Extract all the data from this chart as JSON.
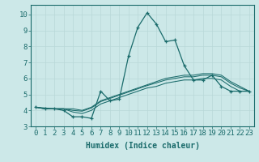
{
  "xlabel": "Humidex (Indice chaleur)",
  "bg_color": "#cce8e8",
  "grid_color": "#b8d8d8",
  "line_color": "#1a6b6b",
  "xlim": [
    -0.5,
    23.5
  ],
  "ylim": [
    3,
    10.6
  ],
  "xticks": [
    0,
    1,
    2,
    3,
    4,
    5,
    6,
    7,
    8,
    9,
    10,
    11,
    12,
    13,
    14,
    15,
    16,
    17,
    18,
    19,
    20,
    21,
    22,
    23
  ],
  "yticks": [
    3,
    4,
    5,
    6,
    7,
    8,
    9,
    10
  ],
  "series": [
    [
      4.2,
      4.1,
      4.1,
      4.0,
      3.6,
      3.6,
      3.5,
      5.2,
      4.6,
      4.7,
      7.4,
      9.2,
      10.1,
      9.4,
      8.3,
      8.4,
      6.8,
      5.9,
      5.9,
      6.2,
      5.5,
      5.2,
      5.2,
      5.2
    ],
    [
      4.2,
      4.1,
      4.1,
      4.1,
      3.9,
      3.8,
      4.0,
      4.4,
      4.6,
      4.8,
      5.0,
      5.2,
      5.4,
      5.5,
      5.7,
      5.8,
      5.9,
      5.9,
      6.0,
      6.0,
      5.9,
      5.5,
      5.2,
      5.2
    ],
    [
      4.2,
      4.15,
      4.1,
      4.1,
      4.0,
      3.95,
      4.15,
      4.55,
      4.75,
      4.95,
      5.15,
      5.35,
      5.55,
      5.72,
      5.9,
      6.0,
      6.1,
      6.1,
      6.2,
      6.2,
      6.1,
      5.7,
      5.4,
      5.2
    ],
    [
      4.2,
      4.1,
      4.1,
      4.1,
      4.1,
      4.0,
      4.2,
      4.6,
      4.8,
      5.0,
      5.2,
      5.4,
      5.6,
      5.8,
      6.0,
      6.1,
      6.2,
      6.2,
      6.3,
      6.3,
      6.2,
      5.8,
      5.5,
      5.2
    ]
  ],
  "font_size": 7,
  "tick_fontsize": 6.5
}
